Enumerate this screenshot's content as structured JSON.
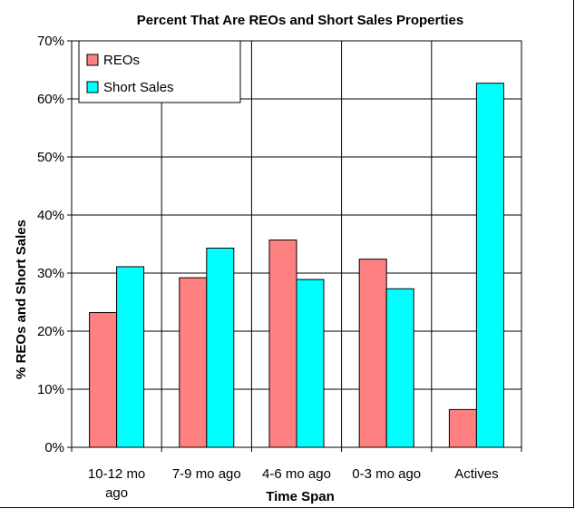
{
  "chart_data": {
    "type": "bar",
    "title": "Percent That Are REOs and Short Sales Properties",
    "xlabel": "Time Span",
    "ylabel": "% REOs and Short Sales",
    "ylim": [
      0,
      70
    ],
    "ytick_labels": [
      "0%",
      "10%",
      "20%",
      "30%",
      "40%",
      "50%",
      "60%",
      "70%"
    ],
    "categories": [
      [
        "10-12 mo",
        "ago"
      ],
      [
        "7-9 mo ago"
      ],
      [
        "4-6 mo ago"
      ],
      [
        "0-3 mo ago"
      ],
      [
        "Actives"
      ]
    ],
    "series": [
      {
        "name": "REOs",
        "color": "#ff8080",
        "values": [
          23.2,
          29.2,
          35.7,
          32.4,
          6.5
        ]
      },
      {
        "name": "Short Sales",
        "color": "#00ffff",
        "values": [
          31.1,
          34.3,
          28.9,
          27.3,
          62.7
        ]
      }
    ],
    "grid": true,
    "legend_position": "top-left"
  }
}
